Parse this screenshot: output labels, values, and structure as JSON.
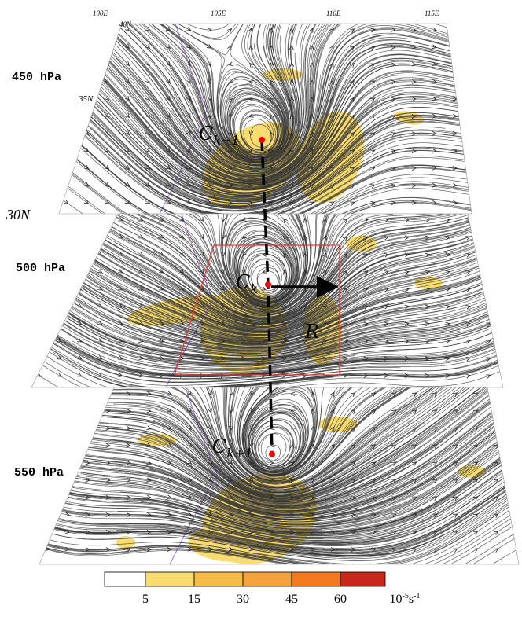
{
  "panels": [
    {
      "level": "450 hPa"
    },
    {
      "level": "500 hPa"
    },
    {
      "level": "550 hPa"
    }
  ],
  "lon_labels": [
    "100E",
    "105E",
    "110E",
    "115E"
  ],
  "lat_labels": [
    "40N",
    "35N",
    "30N"
  ],
  "centers": [
    {
      "base": "C",
      "sub": "k−1"
    },
    {
      "base": "C",
      "sub": "k"
    },
    {
      "base": "C",
      "sub": "k+1"
    }
  ],
  "radius_label": "R",
  "colorbar": {
    "ticks": [
      5,
      15,
      30,
      45,
      60
    ],
    "unit": {
      "base": "10",
      "exp": "-5",
      "unit": "s",
      "unit_exp": "-1"
    }
  }
}
